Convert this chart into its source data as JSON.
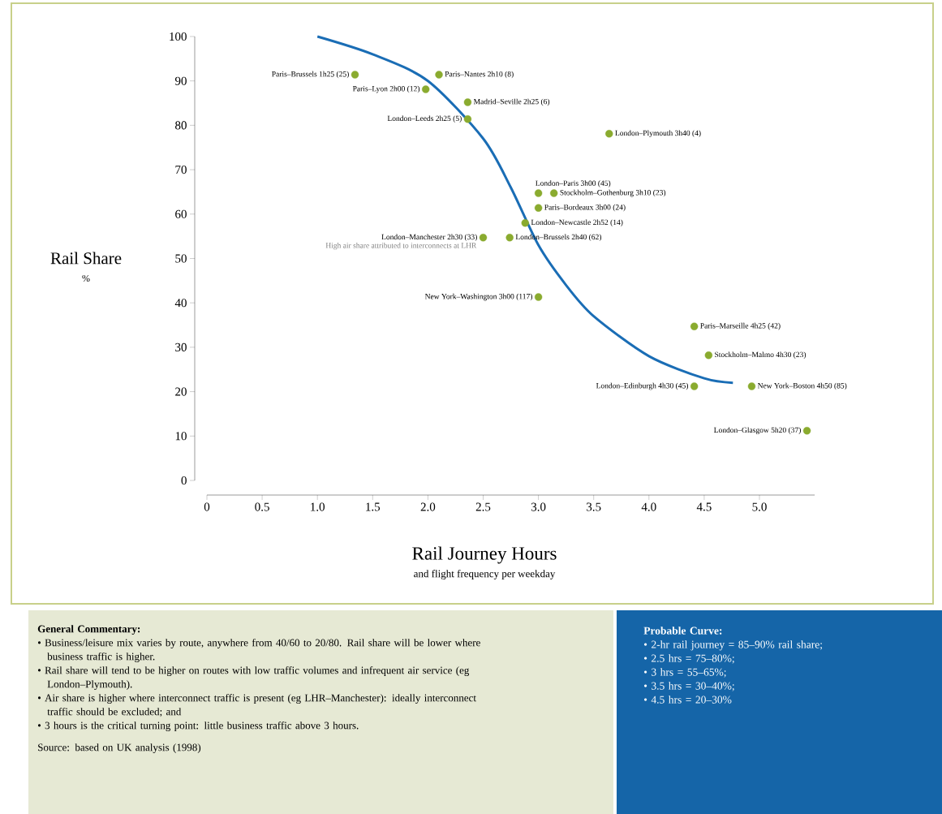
{
  "chart_data": {
    "type": "scatter",
    "xlabel": "Rail Journey Hours",
    "ylabel": "Rail Share",
    "xlim": [
      0,
      5.5
    ],
    "ylim": [
      0,
      100
    ],
    "xticks": [
      0,
      0.5,
      {
        "value": 1,
        "label": "1.0"
      },
      1.5,
      {
        "value": 2,
        "label": "2.0"
      },
      2.5,
      {
        "value": 3,
        "label": "3.0"
      },
      3.5,
      {
        "value": 4,
        "label": "4.0"
      },
      4.5,
      {
        "value": 5,
        "label": "5.0"
      }
    ],
    "yticks": [
      0,
      10,
      20,
      30,
      40,
      50,
      60,
      70,
      80,
      90,
      100
    ],
    "grid": false,
    "series": [
      {
        "type": "line",
        "color": "#1a6db5",
        "marker": "none",
        "x": [
          1.0,
          1.5,
          2.0,
          2.5,
          2.75,
          3.0,
          3.25,
          3.5,
          4.0,
          4.5,
          4.76
        ],
        "values": [
          100,
          96,
          90,
          77,
          66,
          53,
          44,
          37,
          28,
          23,
          22
        ]
      },
      {
        "color": "#8aab2f",
        "marker": "circle",
        "x": [
          1.34,
          2.1,
          1.98,
          2.36,
          2.36,
          3.64,
          3.0,
          3.14,
          3.0,
          2.88,
          2.5,
          2.74,
          3.0,
          4.41,
          4.54,
          4.41,
          4.93,
          5.43
        ],
        "values": [
          91.4,
          91.4,
          88.1,
          85.2,
          81.4,
          78.1,
          64.7,
          64.7,
          61.4,
          58.0,
          54.7,
          54.7,
          41.3,
          34.7,
          28.2,
          21.2,
          21.2,
          11.2
        ]
      }
    ],
    "annotations": [
      {
        "text": "Paris–Brussels 1h25 (25)",
        "x": 1.34,
        "y": 91.4
      },
      {
        "text": "Paris–Nantes 2h10 (8)",
        "x": 2.1,
        "y": 91.4
      },
      {
        "text": "Paris–Lyon 2h00 (12)",
        "x": 1.98,
        "y": 88.1
      },
      {
        "text": "Madrid–Seville 2h25 (6)",
        "x": 2.36,
        "y": 85.2
      },
      {
        "text": "London–Leeds 2h25 (5)",
        "x": 2.36,
        "y": 81.4
      },
      {
        "text": "London–Plymouth 3h40 (4)",
        "x": 3.64,
        "y": 78.1
      },
      {
        "text": "London–Paris 3h00 (45)",
        "x": 3.0,
        "y": 64.7
      },
      {
        "text": "Stockholm–Gothenburg 3h10 (23)",
        "x": 3.14,
        "y": 64.7
      },
      {
        "text": "Paris–Bordeaux 3h00 (24)",
        "x": 3.0,
        "y": 61.4
      },
      {
        "text": "London–Newcastle 2h52 (14)",
        "x": 2.88,
        "y": 58.0
      },
      {
        "text": "London–Manchester 2h30 (33)",
        "x": 2.5,
        "y": 54.7
      },
      {
        "text": "London–Brussels 2h40 (62)",
        "x": 2.74,
        "y": 54.7
      },
      {
        "text": "New York–Washington 3h00 (117)",
        "x": 3.0,
        "y": 41.3
      },
      {
        "text": "Paris–Marseille 4h25 (42)",
        "x": 4.41,
        "y": 34.7
      },
      {
        "text": "Stockholm–Malmo 4h30 (23)",
        "x": 4.54,
        "y": 28.2
      },
      {
        "text": "London–Edinburgh 4h30 (45)",
        "x": 4.41,
        "y": 21.2
      },
      {
        "text": "New York–Boston 4h50 (85)",
        "x": 4.93,
        "y": 21.2
      },
      {
        "text": "London–Glasgow 5h20 (37)",
        "x": 5.43,
        "y": 11.2
      },
      {
        "text": "High air share attributed to interconnects at LHR",
        "x": 2.5,
        "y": 54.7
      },
      "%",
      "and flight frequency per weekday",
      "General Commentary:",
      "• Business/leisure mix varies by route, anywhere from 40/60 to 20/80. Rail share will be lower where business traffic is higher.",
      "• Rail share will tend to be higher on routes with low traffic volumes and infrequent air service (eg London–Plymouth).",
      "• Air share is higher where interconnect traffic is present (eg LHR–Manchester): ideally interconnect traffic should be excluded; and",
      "• 3 hours is the critical turning point: little business traffic above 3 hours.",
      "Source: based on UK analysis (1998)",
      "Probable Curve:",
      "• 2-hr rail journey = 85–90% rail share;",
      "• 2.5 hrs = 75–80%;",
      "• 3 hrs = 55–65%;",
      "• 3.5 hrs = 30–40%;",
      "• 4.5 hrs = 20–30%"
    ]
  }
}
